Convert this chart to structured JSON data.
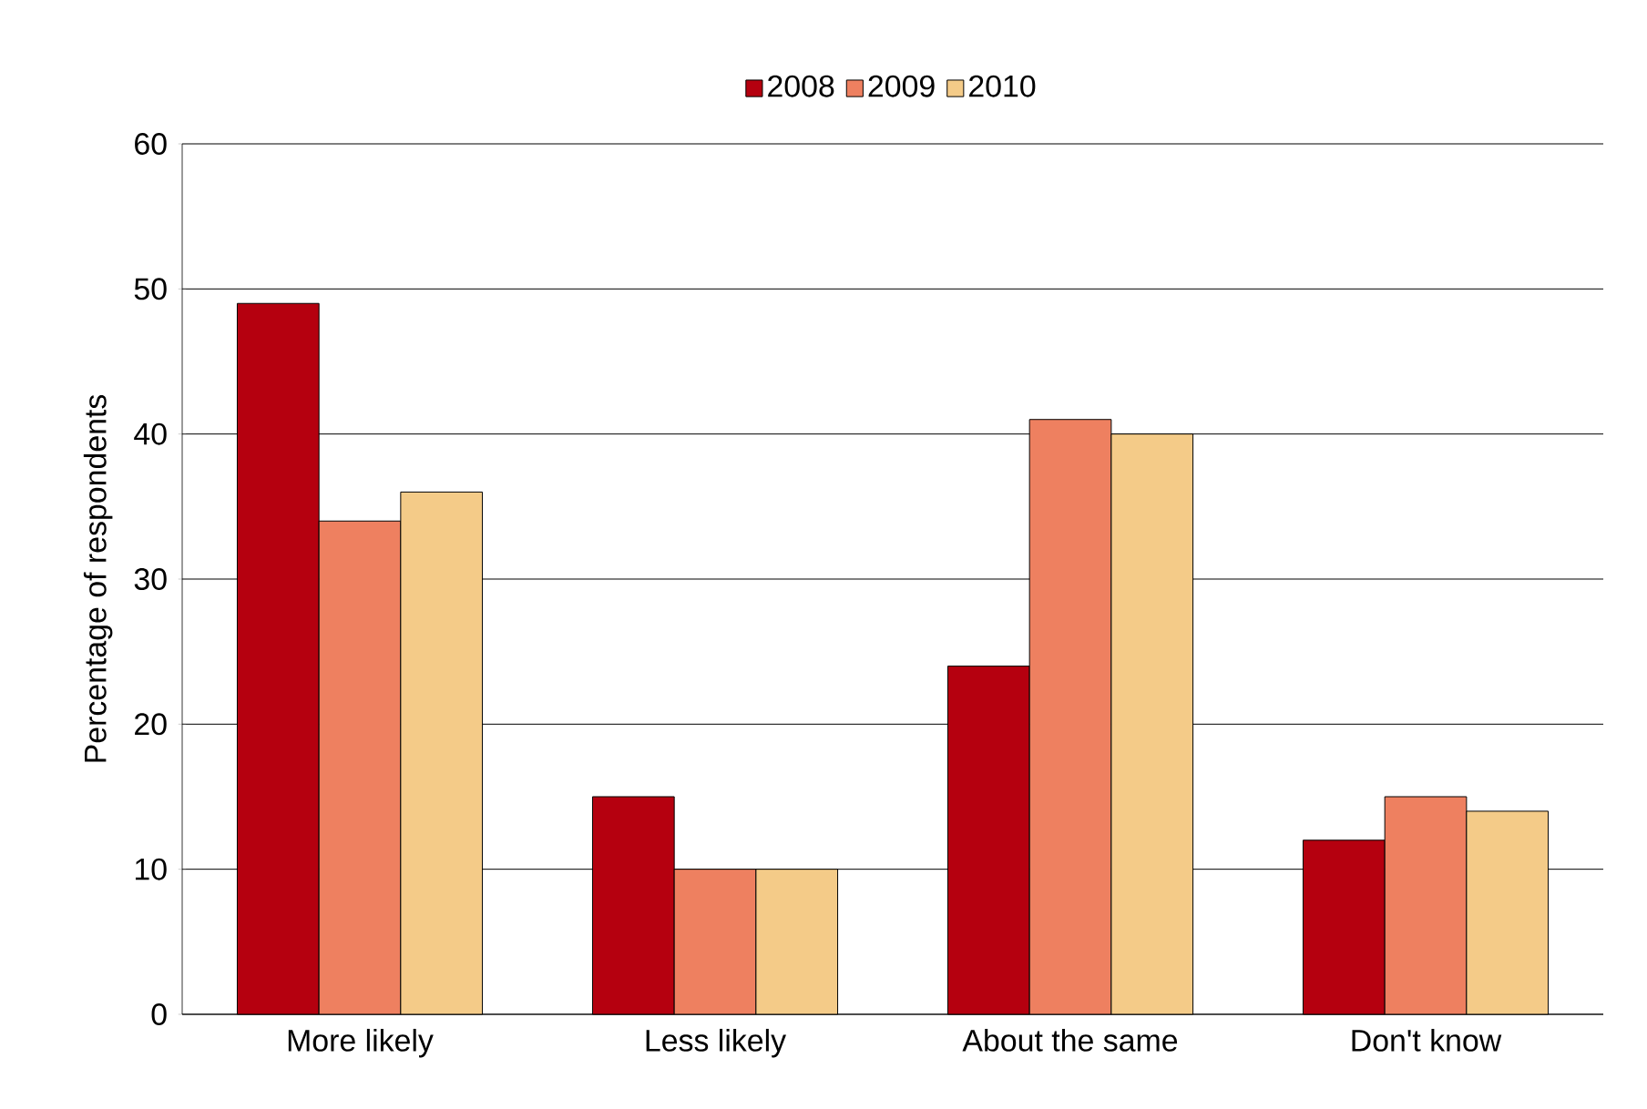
{
  "chart_data": {
    "type": "bar",
    "ylabel": "Percentage of respondents",
    "categories": [
      "More likely",
      "Less likely",
      "About the same",
      "Don't know"
    ],
    "series": [
      {
        "name": "2008",
        "color": "#b5000f",
        "values": [
          49,
          15,
          24,
          12
        ]
      },
      {
        "name": "2009",
        "color": "#ee8060",
        "values": [
          34,
          10,
          41,
          15
        ]
      },
      {
        "name": "2010",
        "color": "#f4cb88",
        "values": [
          36,
          10,
          40,
          14
        ]
      }
    ],
    "ylim": [
      0,
      60
    ],
    "yticks": [
      0,
      10,
      20,
      30,
      40,
      50,
      60
    ],
    "grid": "y",
    "legend": "top"
  }
}
